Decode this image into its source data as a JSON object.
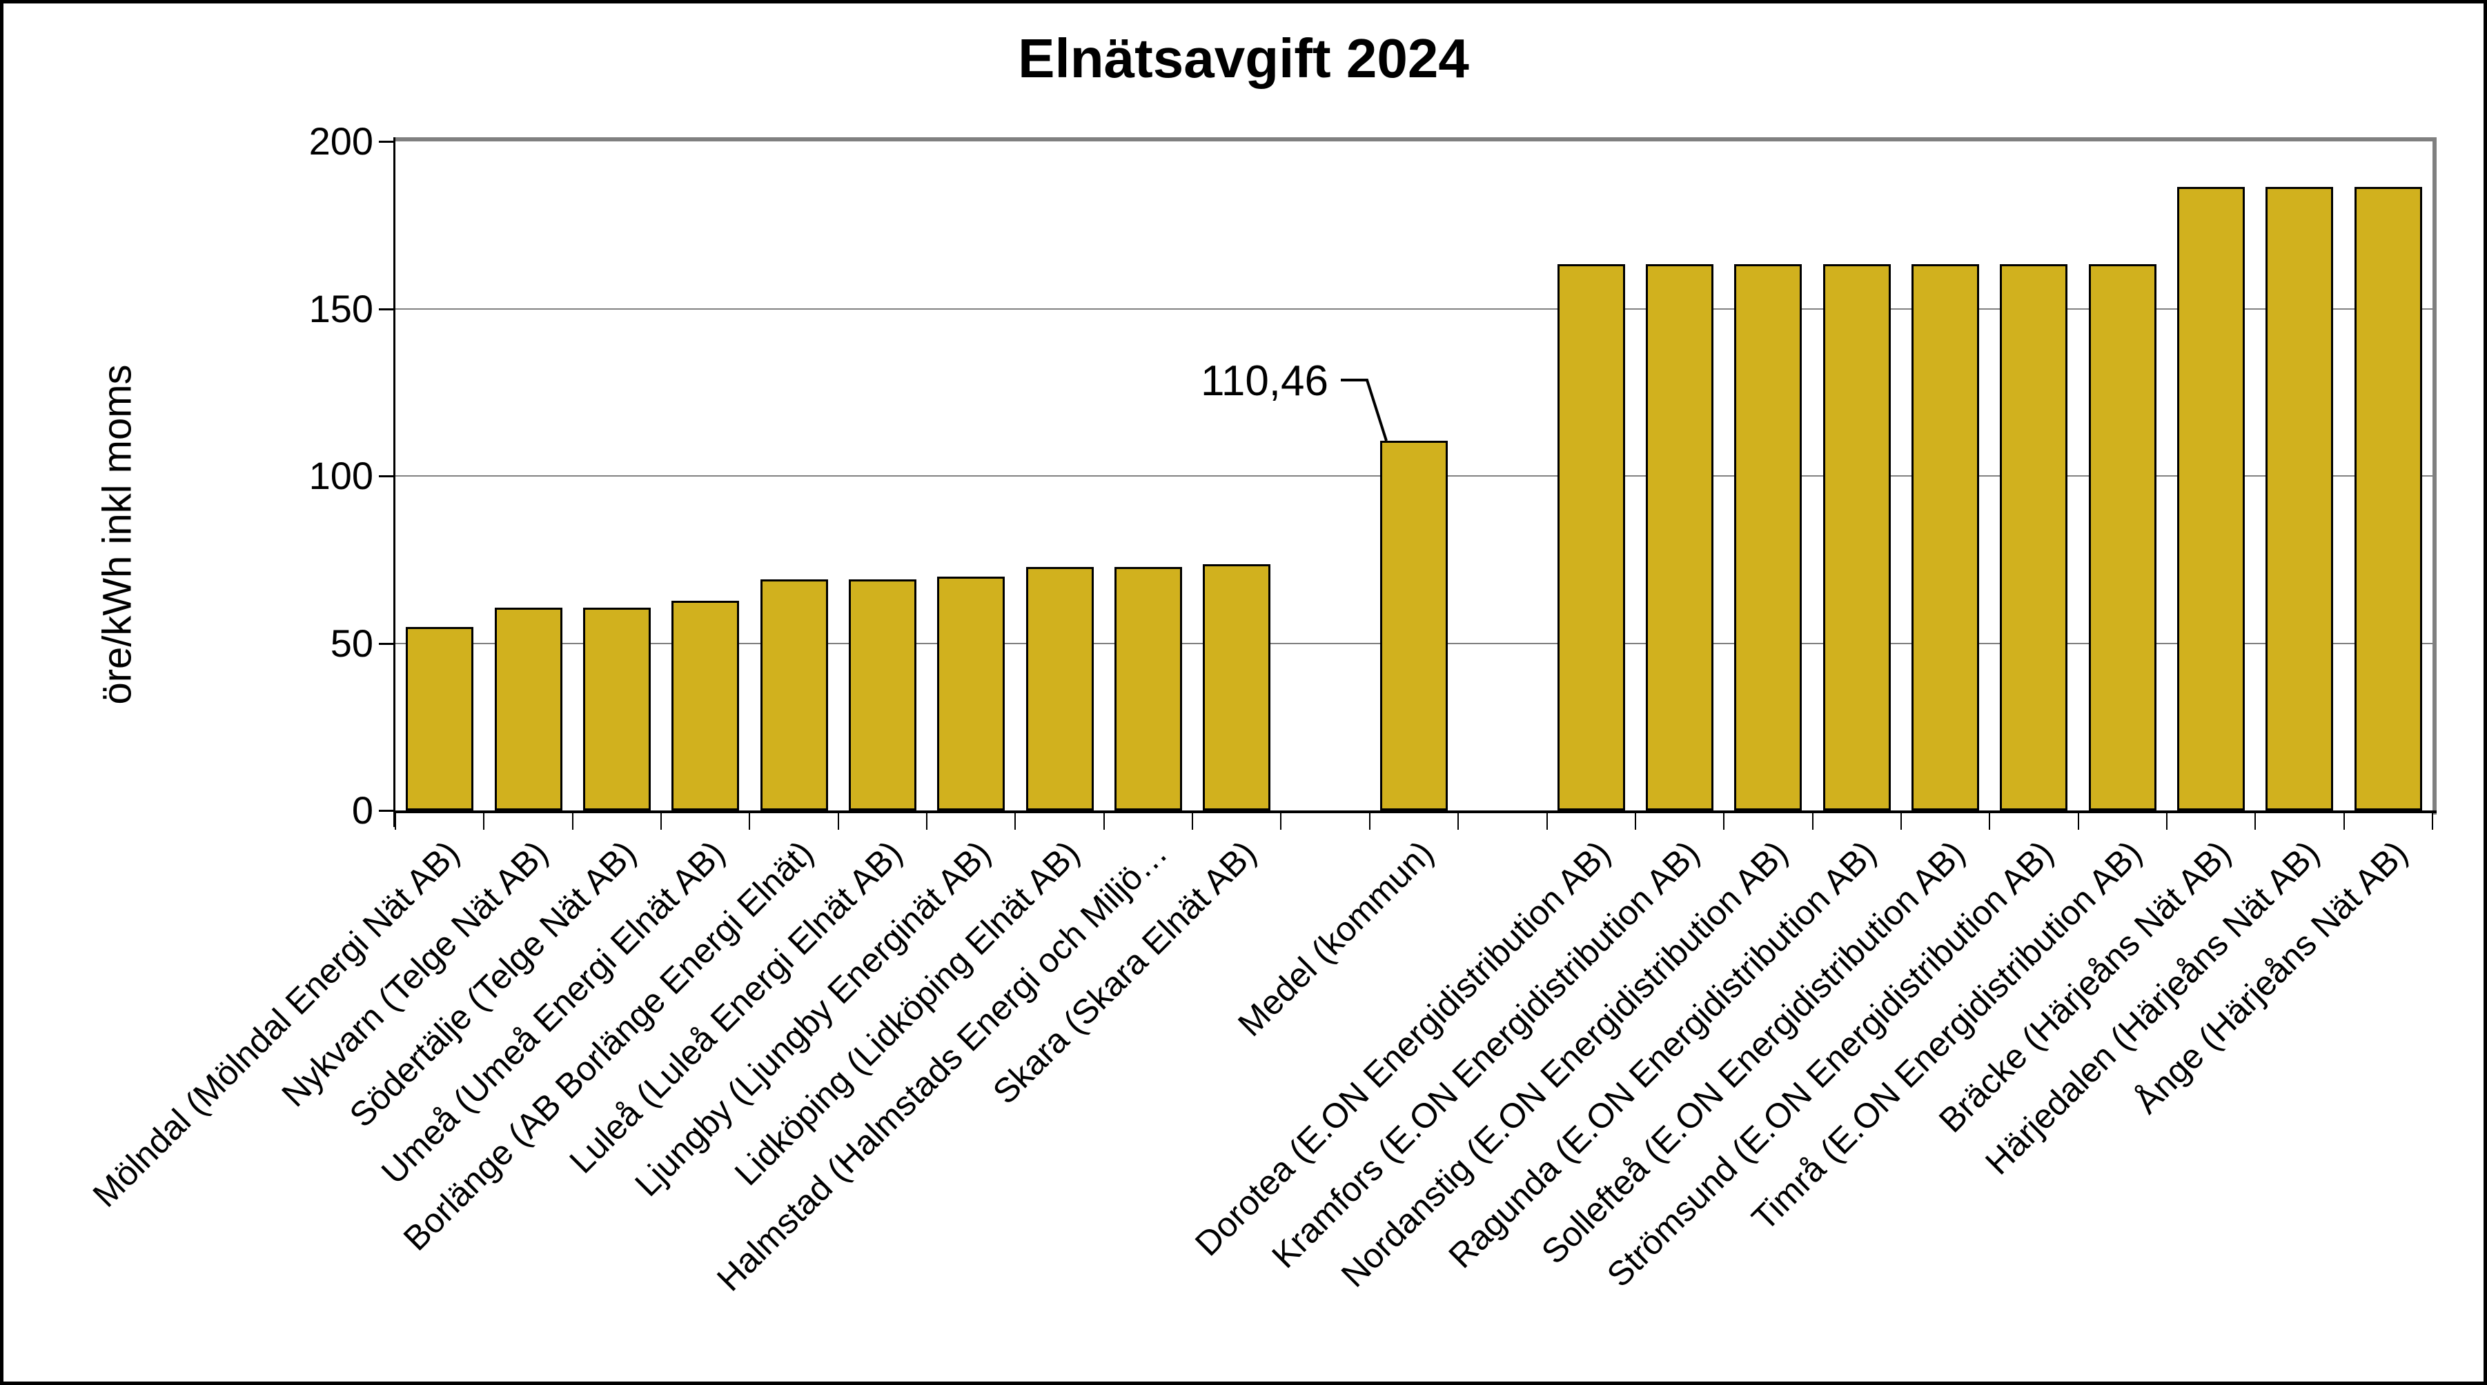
{
  "title": "Elnätsavgift 2024",
  "y_axis": {
    "title": "öre/kWh inkl moms",
    "tick_labels": [
      "0",
      "50",
      "100",
      "150",
      "200"
    ]
  },
  "annotation": {
    "label": "110,46"
  },
  "chart_data": {
    "type": "bar",
    "title": "Elnätsavgift 2024",
    "xlabel": "",
    "ylabel": "öre/kWh inkl moms",
    "ylim": [
      0,
      200
    ],
    "yticks": [
      0,
      50,
      100,
      150,
      200
    ],
    "grid": true,
    "legend_position": "none",
    "bar_color": "#D1B11E",
    "bar_border_color": "#000000",
    "categories": [
      "Mölndal (Mölndal Energi Nät AB)",
      "Nykvarn (Telge Nät AB)",
      "Södertälje (Telge Nät AB)",
      "Umeå (Umeå Energi Elnät AB)",
      "Borlänge (AB Borlänge Energi Elnät)",
      "Luleå (Luleå Energi Elnät AB)",
      "Ljungby (Ljungby Energinät AB)",
      "Lidköping (Lidköping Elnät AB)",
      "Halmstad (Halmstads Energi och Miljö…",
      "Skara (Skara Elnät AB)",
      "Medel (kommun)",
      "Dorotea (E.ON Energidistribution AB)",
      "Kramfors (E.ON Energidistribution AB)",
      "Nordanstig (E.ON Energidistribution AB)",
      "Ragunda (E.ON Energidistribution AB)",
      "Sollefteå (E.ON Energidistribution AB)",
      "Strömsund (E.ON Energidistribution AB)",
      "Timrå (E.ON Energidistribution AB)",
      "Bräcke (Härjeåns Nät AB)",
      "Härjedalen (Härjeåns Nät AB)",
      "Ånge (Härjeåns Nät AB)"
    ],
    "values": [
      54.8,
      60.6,
      60.6,
      62.7,
      69,
      69,
      69.8,
      72.8,
      72.8,
      73.6,
      110.46,
      163.3,
      163.3,
      163.3,
      163.3,
      163.3,
      163.3,
      163.3,
      186.3,
      186.3,
      186.3
    ],
    "slots": [
      1,
      2,
      3,
      4,
      5,
      6,
      7,
      8,
      9,
      10,
      12,
      14,
      15,
      16,
      17,
      18,
      19,
      20,
      21,
      22,
      23
    ],
    "total_slots": 23,
    "annotated_point": {
      "category": "Medel (kommun)",
      "value": 110.46,
      "label": "110,46"
    }
  }
}
